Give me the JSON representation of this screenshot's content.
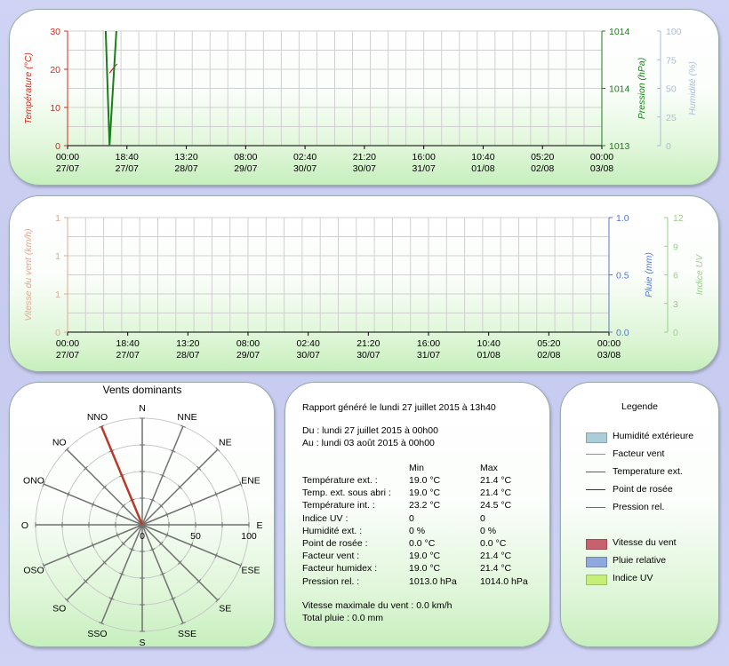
{
  "colors": {
    "temperature": "#d42a1a",
    "pressure": "#1b7d1b",
    "humidity": "#a9bce0",
    "wind": "#e1a88c",
    "rain": "#5577d0",
    "uv": "#9bd08c",
    "grid": "#d0d0d0"
  },
  "chart_data": [
    {
      "type": "line",
      "id": "top",
      "x_ticks": [
        [
          "00:00",
          "27/07"
        ],
        [
          "18:40",
          "27/07"
        ],
        [
          "13:20",
          "28/07"
        ],
        [
          "08:00",
          "29/07"
        ],
        [
          "02:40",
          "30/07"
        ],
        [
          "21:20",
          "30/07"
        ],
        [
          "16:00",
          "31/07"
        ],
        [
          "10:40",
          "01/08"
        ],
        [
          "05:20",
          "02/08"
        ],
        [
          "00:00",
          "03/08"
        ]
      ],
      "left_axis": {
        "label": "Température (°C)",
        "ticks": [
          "0",
          "10",
          "20",
          "30"
        ],
        "ylim": [
          0,
          30
        ]
      },
      "right_axis_1": {
        "label": "Pression (hPa)",
        "ticks": [
          "1013",
          "1014",
          "1014"
        ],
        "ylim": [
          1013,
          1014
        ]
      },
      "right_axis_2": {
        "label": "Humidité (%)",
        "ticks": [
          "0",
          "25",
          "50",
          "75",
          "100"
        ],
        "ylim": [
          0,
          100
        ]
      },
      "series": [
        {
          "name": "Temperature ext.",
          "axis": "left",
          "points": [
            [
              0.55,
              19.0
            ],
            [
              0.62,
              20.8
            ],
            [
              0.65,
              21.4
            ]
          ]
        },
        {
          "name": "Pression rel.",
          "axis": "right1",
          "points": [
            [
              0.5,
              1014.0
            ],
            [
              0.55,
              1013.0
            ],
            [
              0.64,
              1014.0
            ]
          ]
        }
      ],
      "x_range_days": [
        0,
        7
      ]
    },
    {
      "type": "line",
      "id": "bottom",
      "x_ticks": [
        [
          "00:00",
          "27/07"
        ],
        [
          "18:40",
          "27/07"
        ],
        [
          "13:20",
          "28/07"
        ],
        [
          "08:00",
          "29/07"
        ],
        [
          "02:40",
          "30/07"
        ],
        [
          "21:20",
          "30/07"
        ],
        [
          "16:00",
          "31/07"
        ],
        [
          "10:40",
          "01/08"
        ],
        [
          "05:20",
          "02/08"
        ],
        [
          "00:00",
          "03/08"
        ]
      ],
      "left_axis": {
        "label": "Vitesse du vent (km/h)",
        "ticks": [
          "0",
          "1",
          "1",
          "1"
        ],
        "ylim": [
          0,
          1
        ]
      },
      "right_axis_1": {
        "label": "Pluie (mm)",
        "ticks": [
          "0.0",
          "0.5",
          "1.0"
        ],
        "ylim": [
          0,
          1
        ]
      },
      "right_axis_2": {
        "label": "Indice UV",
        "ticks": [
          "0",
          "3",
          "6",
          "9",
          "12"
        ],
        "ylim": [
          0,
          12
        ]
      },
      "series": []
    },
    {
      "type": "polar",
      "id": "wind-rose",
      "title": "Vents dominants",
      "directions": [
        "N",
        "NNE",
        "NE",
        "ENE",
        "E",
        "ESE",
        "SE",
        "SSE",
        "S",
        "SSO",
        "SO",
        "OSO",
        "O",
        "ONO",
        "NO",
        "NNO"
      ],
      "radial_ticks": [
        "0",
        "50",
        "100"
      ],
      "rlim": [
        0,
        100
      ],
      "values": [
        0,
        0,
        0,
        0,
        0,
        0,
        0,
        0,
        0,
        0,
        0,
        0,
        0,
        0,
        0,
        100
      ]
    }
  ],
  "report": {
    "generated": "Rapport généré le lundi 27 juillet 2015 à 13h40",
    "from": "Du : lundi 27 juillet 2015 à 00h00",
    "to": "Au : lundi 03 août 2015 à 00h00",
    "col_min": "Min",
    "col_max": "Max",
    "rows": [
      {
        "label": "Température ext. :",
        "min": "19.0 °C",
        "max": "21.4 °C"
      },
      {
        "label": "Temp. ext. sous abri :",
        "min": "19.0 °C",
        "max": "21.4 °C"
      },
      {
        "label": "Température int. :",
        "min": "23.2 °C",
        "max": "24.5 °C"
      },
      {
        "label": "Indice UV :",
        "min": "0",
        "max": "0"
      },
      {
        "label": "Humidité ext. :",
        "min": "0 %",
        "max": "0 %"
      },
      {
        "label": "Point de rosée :",
        "min": "0.0 °C",
        "max": "0.0 °C"
      },
      {
        "label": "Facteur vent :",
        "min": "19.0 °C",
        "max": "21.4 °C"
      },
      {
        "label": "Facteur humidex :",
        "min": "19.0 °C",
        "max": "21.4 °C"
      },
      {
        "label": "Pression rel. :",
        "min": "1013.0 hPa",
        "max": "1014.0 hPa"
      }
    ],
    "max_wind": "Vitesse maximale du vent : 0.0 km/h",
    "total_rain": "Total pluie : 0.0 mm"
  },
  "legend": {
    "title": "Legende",
    "items": [
      {
        "label": "Humidité extérieure",
        "kind": "box",
        "color": "#a9cdd9"
      },
      {
        "label": "Facteur vent",
        "kind": "line",
        "color": "#4aa8d8"
      },
      {
        "label": "Temperature ext.",
        "kind": "line",
        "color": "#d42a1a"
      },
      {
        "label": "Point de rosée",
        "kind": "line",
        "color": "#1a2fa8"
      },
      {
        "label": "Pression rel.",
        "kind": "line",
        "color": "#2a9a2a"
      },
      {
        "label": "Vitesse du vent",
        "kind": "box",
        "color": "#c8606e"
      },
      {
        "label": "Pluie relative",
        "kind": "box",
        "color": "#8fa8dd"
      },
      {
        "label": "Indice UV",
        "kind": "box",
        "color": "#c6ef7a"
      }
    ]
  }
}
